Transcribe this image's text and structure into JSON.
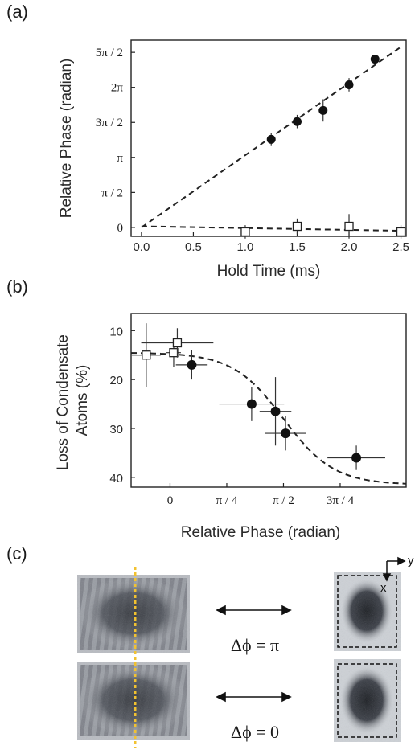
{
  "panel_labels": {
    "a": "(a)",
    "b": "(b)",
    "c": "(c)"
  },
  "chart_data": [
    {
      "type": "scatter",
      "xlabel": "Hold Time (ms)",
      "ylabel": "Relative Phase (radian)",
      "xlim": [
        -0.1,
        2.55
      ],
      "ylim": [
        -0.4,
        8.4
      ],
      "x_ticks": [
        {
          "v": 0.0,
          "label": "0.0"
        },
        {
          "v": 0.5,
          "label": "0.5"
        },
        {
          "v": 1.0,
          "label": "1.0"
        },
        {
          "v": 1.5,
          "label": "1.5"
        },
        {
          "v": 2.0,
          "label": "2.0"
        },
        {
          "v": 2.5,
          "label": "2.5"
        }
      ],
      "y_ticks": [
        {
          "v": 0,
          "label": "0"
        },
        {
          "v": 1.5708,
          "label": "π / 2"
        },
        {
          "v": 3.1416,
          "label": "π"
        },
        {
          "v": 4.7124,
          "label": "3π / 2"
        },
        {
          "v": 6.2832,
          "label": "2π"
        },
        {
          "v": 7.854,
          "label": "5π / 2"
        }
      ],
      "series": [
        {
          "marker": "filled-circle",
          "points": [
            {
              "x": 1.25,
              "y": 3.95,
              "err": 0.3
            },
            {
              "x": 1.5,
              "y": 4.75,
              "err": 0.3
            },
            {
              "x": 1.75,
              "y": 5.25,
              "err": 0.5
            },
            {
              "x": 2.0,
              "y": 6.4,
              "err": 0.3
            },
            {
              "x": 2.25,
              "y": 7.55,
              "err": 0.2
            }
          ]
        },
        {
          "marker": "open-square",
          "points": [
            {
              "x": 1.0,
              "y": -0.2,
              "err": 0.3
            },
            {
              "x": 1.5,
              "y": 0.05,
              "err": 0.35
            },
            {
              "x": 2.0,
              "y": 0.05,
              "err": 0.55
            },
            {
              "x": 2.5,
              "y": -0.2,
              "err": 0.3
            }
          ]
        }
      ],
      "fits": [
        {
          "style": "dashed",
          "x": [
            0.0,
            2.5
          ],
          "y": [
            0.0,
            8.1
          ]
        },
        {
          "style": "dashed",
          "x": [
            0.0,
            2.5
          ],
          "y": [
            0.05,
            -0.15
          ]
        }
      ]
    },
    {
      "type": "scatter",
      "xlabel": "Relative Phase (radian)",
      "ylabel": "Loss of Condensate\nAtoms (%)",
      "xlim": [
        -0.54,
        3.27
      ],
      "ylim": [
        42,
        6.5
      ],
      "x_ticks": [
        {
          "v": 0,
          "label": "0"
        },
        {
          "v": 0.7854,
          "label": "π / 4"
        },
        {
          "v": 1.5708,
          "label": "π / 2"
        },
        {
          "v": 2.3562,
          "label": "3π / 4"
        }
      ],
      "y_ticks": [
        {
          "v": 10,
          "label": "10"
        },
        {
          "v": 20,
          "label": "20"
        },
        {
          "v": 30,
          "label": "30"
        },
        {
          "v": 40,
          "label": "40"
        }
      ],
      "series": [
        {
          "marker": "filled-circle",
          "points": [
            {
              "x": 0.3,
              "y": 17,
              "xerr": 0.22,
              "yerr": 3
            },
            {
              "x": 1.13,
              "y": 25,
              "xerr": 0.45,
              "yerr": 3.5
            },
            {
              "x": 1.46,
              "y": 26.5,
              "xerr": 0.22,
              "yerr": 7
            },
            {
              "x": 1.6,
              "y": 31,
              "xerr": 0.28,
              "yerr": 3.5
            },
            {
              "x": 2.58,
              "y": 36,
              "xerr": 0.4,
              "yerr": 2.5
            }
          ]
        },
        {
          "marker": "open-square",
          "points": [
            {
              "x": -0.33,
              "y": 15,
              "xerr": 0.2,
              "yerr": 6.5
            },
            {
              "x": 0.05,
              "y": 14.5,
              "xerr": 0.1,
              "yerr": 3
            },
            {
              "x": 0.1,
              "y": 12.5,
              "xerr": 0.5,
              "yerr": 3
            }
          ]
        }
      ],
      "fits": [
        {
          "style": "dashed",
          "function": "sigmoid",
          "min": 14.5,
          "max": 41.5,
          "center": 1.57,
          "width": 0.35
        }
      ]
    }
  ],
  "panel_c": {
    "rows": [
      {
        "delta_phi": "Δϕ = π"
      },
      {
        "delta_phi": "Δϕ = 0"
      }
    ],
    "axes": {
      "x": "x",
      "y": "y"
    }
  }
}
